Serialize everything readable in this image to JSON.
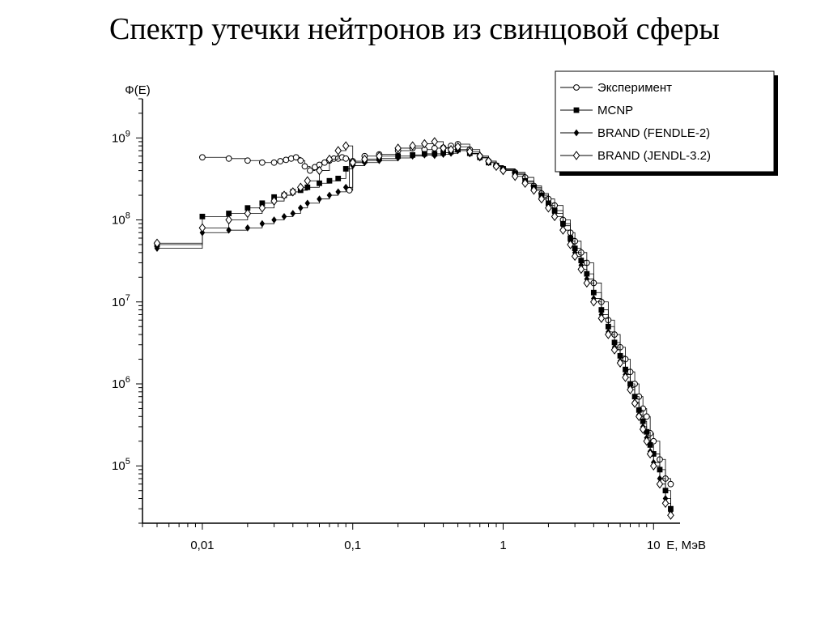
{
  "slide": {
    "title": "Спектр утечки нейтронов из свинцовой сферы"
  },
  "chart_data": {
    "type": "line",
    "title": "Спектр утечки нейтронов из свинцовой сферы",
    "xlabel": "E, МэВ",
    "ylabel": "Ф(E)",
    "xscale": "log",
    "yscale": "log",
    "xlim": [
      0.004,
      15
    ],
    "ylim": [
      20000,
      3000000000
    ],
    "x_ticks": [
      {
        "value": 0.01,
        "label": "0,01"
      },
      {
        "value": 0.1,
        "label": "0,1"
      },
      {
        "value": 1,
        "label": "1"
      },
      {
        "value": 10,
        "label": "10"
      }
    ],
    "y_ticks": [
      {
        "value": 100000,
        "base": "10",
        "exp": "5"
      },
      {
        "value": 1000000,
        "base": "10",
        "exp": "6"
      },
      {
        "value": 10000000,
        "base": "10",
        "exp": "7"
      },
      {
        "value": 100000000,
        "base": "10",
        "exp": "8"
      },
      {
        "value": 1000000000,
        "base": "10",
        "exp": "9"
      }
    ],
    "grid": false,
    "legend_position": "top-right",
    "series": [
      {
        "name": "Эксперимент",
        "marker": "open-circle",
        "points": [
          [
            0.01,
            580000000
          ],
          [
            0.015,
            560000000
          ],
          [
            0.02,
            530000000
          ],
          [
            0.025,
            500000000
          ],
          [
            0.03,
            500000000
          ],
          [
            0.033,
            520000000
          ],
          [
            0.036,
            540000000
          ],
          [
            0.039,
            560000000
          ],
          [
            0.042,
            580000000
          ],
          [
            0.045,
            530000000
          ],
          [
            0.048,
            450000000
          ],
          [
            0.052,
            400000000
          ],
          [
            0.056,
            440000000
          ],
          [
            0.06,
            470000000
          ],
          [
            0.065,
            500000000
          ],
          [
            0.07,
            530000000
          ],
          [
            0.075,
            560000000
          ],
          [
            0.08,
            560000000
          ],
          [
            0.085,
            580000000
          ],
          [
            0.09,
            560000000
          ],
          [
            0.095,
            230000000
          ],
          [
            0.1,
            520000000
          ],
          [
            0.12,
            600000000
          ],
          [
            0.15,
            630000000
          ],
          [
            0.2,
            700000000
          ],
          [
            0.25,
            750000000
          ],
          [
            0.3,
            720000000
          ],
          [
            0.35,
            750000000
          ],
          [
            0.4,
            760000000
          ],
          [
            0.45,
            800000000
          ],
          [
            0.5,
            840000000
          ],
          [
            0.6,
            720000000
          ],
          [
            0.7,
            600000000
          ],
          [
            0.8,
            520000000
          ],
          [
            0.9,
            460000000
          ],
          [
            1.0,
            420000000
          ],
          [
            1.2,
            380000000
          ],
          [
            1.4,
            330000000
          ],
          [
            1.6,
            260000000
          ],
          [
            1.8,
            210000000
          ],
          [
            2.0,
            180000000
          ],
          [
            2.2,
            150000000
          ],
          [
            2.5,
            100000000
          ],
          [
            2.8,
            70000000
          ],
          [
            3.0,
            55000000
          ],
          [
            3.3,
            40000000
          ],
          [
            3.6,
            30000000
          ],
          [
            4.0,
            17000000
          ],
          [
            4.5,
            10000000
          ],
          [
            5.0,
            6000000
          ],
          [
            5.5,
            4000000
          ],
          [
            6.0,
            2800000
          ],
          [
            6.5,
            2000000
          ],
          [
            7.0,
            1400000
          ],
          [
            7.5,
            1000000
          ],
          [
            8.0,
            700000
          ],
          [
            8.5,
            500000
          ],
          [
            9.0,
            400000
          ],
          [
            9.5,
            250000
          ],
          [
            10.0,
            200000
          ],
          [
            11.0,
            120000
          ],
          [
            12.0,
            70000
          ],
          [
            13.0,
            60000
          ]
        ]
      },
      {
        "name": "MCNP",
        "marker": "filled-square",
        "points": [
          [
            0.005,
            50000000
          ],
          [
            0.01,
            110000000
          ],
          [
            0.015,
            120000000
          ],
          [
            0.02,
            140000000
          ],
          [
            0.025,
            160000000
          ],
          [
            0.03,
            190000000
          ],
          [
            0.035,
            200000000
          ],
          [
            0.04,
            220000000
          ],
          [
            0.045,
            230000000
          ],
          [
            0.05,
            250000000
          ],
          [
            0.06,
            280000000
          ],
          [
            0.07,
            300000000
          ],
          [
            0.08,
            320000000
          ],
          [
            0.09,
            420000000
          ],
          [
            0.1,
            500000000
          ],
          [
            0.12,
            530000000
          ],
          [
            0.15,
            560000000
          ],
          [
            0.2,
            600000000
          ],
          [
            0.25,
            620000000
          ],
          [
            0.3,
            640000000
          ],
          [
            0.35,
            640000000
          ],
          [
            0.4,
            660000000
          ],
          [
            0.45,
            680000000
          ],
          [
            0.5,
            720000000
          ],
          [
            0.6,
            650000000
          ],
          [
            0.7,
            580000000
          ],
          [
            0.8,
            500000000
          ],
          [
            0.9,
            460000000
          ],
          [
            1.0,
            420000000
          ],
          [
            1.2,
            370000000
          ],
          [
            1.4,
            300000000
          ],
          [
            1.6,
            250000000
          ],
          [
            1.8,
            200000000
          ],
          [
            2.0,
            160000000
          ],
          [
            2.2,
            130000000
          ],
          [
            2.5,
            90000000
          ],
          [
            2.8,
            60000000
          ],
          [
            3.0,
            45000000
          ],
          [
            3.3,
            32000000
          ],
          [
            3.6,
            22000000
          ],
          [
            4.0,
            13000000
          ],
          [
            4.5,
            8000000
          ],
          [
            5.0,
            5000000
          ],
          [
            5.5,
            3200000
          ],
          [
            6.0,
            2200000
          ],
          [
            6.5,
            1500000
          ],
          [
            7.0,
            1000000
          ],
          [
            7.5,
            700000
          ],
          [
            8.0,
            480000
          ],
          [
            8.5,
            350000
          ],
          [
            9.0,
            260000
          ],
          [
            9.5,
            180000
          ],
          [
            10.0,
            140000
          ],
          [
            11.0,
            90000
          ],
          [
            12.0,
            50000
          ],
          [
            13.0,
            30000
          ]
        ]
      },
      {
        "name": "BRAND (FENDLE-2)",
        "marker": "filled-diamond",
        "points": [
          [
            0.005,
            45000000
          ],
          [
            0.01,
            70000000
          ],
          [
            0.015,
            75000000
          ],
          [
            0.02,
            80000000
          ],
          [
            0.025,
            90000000
          ],
          [
            0.03,
            100000000
          ],
          [
            0.035,
            110000000
          ],
          [
            0.04,
            120000000
          ],
          [
            0.045,
            140000000
          ],
          [
            0.05,
            160000000
          ],
          [
            0.06,
            180000000
          ],
          [
            0.07,
            200000000
          ],
          [
            0.08,
            220000000
          ],
          [
            0.09,
            250000000
          ],
          [
            0.1,
            460000000
          ],
          [
            0.12,
            500000000
          ],
          [
            0.15,
            530000000
          ],
          [
            0.2,
            570000000
          ],
          [
            0.25,
            600000000
          ],
          [
            0.3,
            620000000
          ],
          [
            0.35,
            610000000
          ],
          [
            0.4,
            630000000
          ],
          [
            0.45,
            650000000
          ],
          [
            0.5,
            700000000
          ],
          [
            0.6,
            640000000
          ],
          [
            0.7,
            570000000
          ],
          [
            0.8,
            500000000
          ],
          [
            0.9,
            450000000
          ],
          [
            1.0,
            410000000
          ],
          [
            1.2,
            360000000
          ],
          [
            1.4,
            290000000
          ],
          [
            1.6,
            240000000
          ],
          [
            1.8,
            190000000
          ],
          [
            2.0,
            150000000
          ],
          [
            2.2,
            120000000
          ],
          [
            2.5,
            85000000
          ],
          [
            2.8,
            55000000
          ],
          [
            3.0,
            40000000
          ],
          [
            3.3,
            28000000
          ],
          [
            3.6,
            19000000
          ],
          [
            4.0,
            11000000
          ],
          [
            4.5,
            7000000
          ],
          [
            5.0,
            4300000
          ],
          [
            5.5,
            2800000
          ],
          [
            6.0,
            1900000
          ],
          [
            6.5,
            1300000
          ],
          [
            7.0,
            900000
          ],
          [
            7.5,
            600000
          ],
          [
            8.0,
            420000
          ],
          [
            8.5,
            300000
          ],
          [
            9.0,
            220000
          ],
          [
            9.5,
            150000
          ],
          [
            10.0,
            110000
          ],
          [
            11.0,
            70000
          ],
          [
            12.0,
            40000
          ],
          [
            13.0,
            28000
          ]
        ]
      },
      {
        "name": "BRAND (JENDL-3.2)",
        "marker": "open-diamond",
        "points": [
          [
            0.005,
            52000000
          ],
          [
            0.01,
            80000000
          ],
          [
            0.015,
            100000000
          ],
          [
            0.02,
            120000000
          ],
          [
            0.025,
            140000000
          ],
          [
            0.03,
            170000000
          ],
          [
            0.035,
            200000000
          ],
          [
            0.04,
            220000000
          ],
          [
            0.045,
            250000000
          ],
          [
            0.05,
            300000000
          ],
          [
            0.06,
            400000000
          ],
          [
            0.07,
            550000000
          ],
          [
            0.08,
            700000000
          ],
          [
            0.09,
            800000000
          ],
          [
            0.1,
            500000000
          ],
          [
            0.12,
            550000000
          ],
          [
            0.15,
            600000000
          ],
          [
            0.2,
            750000000
          ],
          [
            0.25,
            800000000
          ],
          [
            0.3,
            850000000
          ],
          [
            0.35,
            900000000
          ],
          [
            0.4,
            750000000
          ],
          [
            0.45,
            720000000
          ],
          [
            0.5,
            780000000
          ],
          [
            0.6,
            680000000
          ],
          [
            0.7,
            600000000
          ],
          [
            0.8,
            520000000
          ],
          [
            0.9,
            450000000
          ],
          [
            1.0,
            400000000
          ],
          [
            1.2,
            340000000
          ],
          [
            1.4,
            280000000
          ],
          [
            1.6,
            230000000
          ],
          [
            1.8,
            180000000
          ],
          [
            2.0,
            140000000
          ],
          [
            2.2,
            110000000
          ],
          [
            2.5,
            75000000
          ],
          [
            2.8,
            50000000
          ],
          [
            3.0,
            36000000
          ],
          [
            3.3,
            25000000
          ],
          [
            3.6,
            17000000
          ],
          [
            4.0,
            10000000
          ],
          [
            4.5,
            6300000
          ],
          [
            5.0,
            4000000
          ],
          [
            5.5,
            2600000
          ],
          [
            6.0,
            1800000
          ],
          [
            6.5,
            1200000
          ],
          [
            7.0,
            850000
          ],
          [
            7.5,
            580000
          ],
          [
            8.0,
            400000
          ],
          [
            8.5,
            280000
          ],
          [
            9.0,
            200000
          ],
          [
            9.5,
            140000
          ],
          [
            10.0,
            100000
          ],
          [
            11.0,
            60000
          ],
          [
            12.0,
            35000
          ],
          [
            13.0,
            25000
          ]
        ]
      }
    ]
  }
}
